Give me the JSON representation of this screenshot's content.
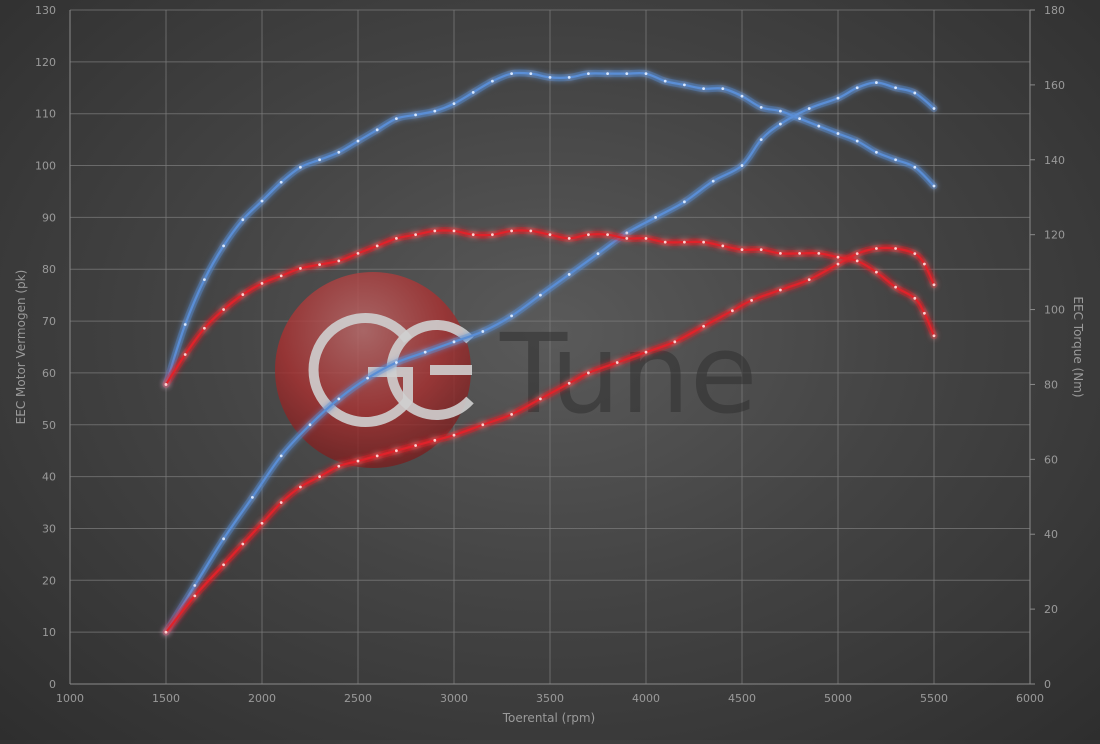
{
  "chart_data": {
    "type": "line",
    "xlabel": "Toerental (rpm)",
    "ylabel_left": "EEC Motor Vermogen (pk)",
    "ylabel_right": "EEC Torque (Nm)",
    "xlim": [
      1000,
      6000
    ],
    "ylim_left": [
      0,
      130
    ],
    "ylim_right": [
      0,
      180
    ],
    "x_ticks": [
      1000,
      1500,
      2000,
      2500,
      3000,
      3500,
      4000,
      4500,
      5000,
      5500,
      6000
    ],
    "y_ticks_left": [
      0,
      10,
      20,
      30,
      40,
      50,
      60,
      70,
      80,
      90,
      100,
      110,
      120,
      130
    ],
    "y_ticks_right": [
      0,
      20,
      40,
      60,
      80,
      100,
      120,
      140,
      160,
      180
    ],
    "grid": true,
    "legend": "none",
    "series": [
      {
        "axis": "left",
        "color": "#5a8ed6",
        "points": [
          [
            1500,
            10
          ],
          [
            1650,
            19
          ],
          [
            1800,
            28
          ],
          [
            1950,
            36
          ],
          [
            2100,
            44
          ],
          [
            2250,
            50
          ],
          [
            2400,
            55
          ],
          [
            2550,
            59
          ],
          [
            2700,
            62
          ],
          [
            2850,
            64
          ],
          [
            3000,
            66
          ],
          [
            3150,
            68
          ],
          [
            3300,
            71
          ],
          [
            3450,
            75
          ],
          [
            3600,
            79
          ],
          [
            3750,
            83
          ],
          [
            3900,
            87
          ],
          [
            4050,
            90
          ],
          [
            4200,
            93
          ],
          [
            4350,
            97
          ],
          [
            4500,
            100
          ],
          [
            4600,
            105
          ],
          [
            4700,
            108
          ],
          [
            4850,
            111
          ],
          [
            5000,
            113
          ],
          [
            5100,
            115
          ],
          [
            5200,
            116
          ],
          [
            5300,
            115
          ],
          [
            5400,
            114
          ],
          [
            5500,
            111
          ]
        ]
      },
      {
        "axis": "right",
        "color": "#5a8ed6",
        "points": [
          [
            1500,
            80
          ],
          [
            1600,
            96
          ],
          [
            1700,
            108
          ],
          [
            1800,
            117
          ],
          [
            1900,
            124
          ],
          [
            2000,
            129
          ],
          [
            2100,
            134
          ],
          [
            2200,
            138
          ],
          [
            2300,
            140
          ],
          [
            2400,
            142
          ],
          [
            2500,
            145
          ],
          [
            2600,
            148
          ],
          [
            2700,
            151
          ],
          [
            2800,
            152
          ],
          [
            2900,
            153
          ],
          [
            3000,
            155
          ],
          [
            3100,
            158
          ],
          [
            3200,
            161
          ],
          [
            3300,
            163
          ],
          [
            3400,
            163
          ],
          [
            3500,
            162
          ],
          [
            3600,
            162
          ],
          [
            3700,
            163
          ],
          [
            3800,
            163
          ],
          [
            3900,
            163
          ],
          [
            4000,
            163
          ],
          [
            4100,
            161
          ],
          [
            4200,
            160
          ],
          [
            4300,
            159
          ],
          [
            4400,
            159
          ],
          [
            4500,
            157
          ],
          [
            4600,
            154
          ],
          [
            4700,
            153
          ],
          [
            4800,
            151
          ],
          [
            4900,
            149
          ],
          [
            5000,
            147
          ],
          [
            5100,
            145
          ],
          [
            5200,
            142
          ],
          [
            5300,
            140
          ],
          [
            5400,
            138
          ],
          [
            5500,
            133
          ]
        ]
      },
      {
        "axis": "left",
        "color": "#e0232a",
        "points": [
          [
            1500,
            10
          ],
          [
            1650,
            17
          ],
          [
            1800,
            23
          ],
          [
            1900,
            27
          ],
          [
            2000,
            31
          ],
          [
            2100,
            35
          ],
          [
            2200,
            38
          ],
          [
            2300,
            40
          ],
          [
            2400,
            42
          ],
          [
            2500,
            43
          ],
          [
            2600,
            44
          ],
          [
            2700,
            45
          ],
          [
            2800,
            46
          ],
          [
            2900,
            47
          ],
          [
            3000,
            48
          ],
          [
            3150,
            50
          ],
          [
            3300,
            52
          ],
          [
            3450,
            55
          ],
          [
            3600,
            58
          ],
          [
            3700,
            60
          ],
          [
            3850,
            62
          ],
          [
            4000,
            64
          ],
          [
            4150,
            66
          ],
          [
            4300,
            69
          ],
          [
            4450,
            72
          ],
          [
            4550,
            74
          ],
          [
            4700,
            76
          ],
          [
            4850,
            78
          ],
          [
            5000,
            81
          ],
          [
            5100,
            83
          ],
          [
            5200,
            84
          ],
          [
            5300,
            84
          ],
          [
            5400,
            83
          ],
          [
            5450,
            81
          ],
          [
            5500,
            77
          ]
        ]
      },
      {
        "axis": "right",
        "color": "#e0232a",
        "points": [
          [
            1500,
            80
          ],
          [
            1600,
            88
          ],
          [
            1700,
            95
          ],
          [
            1800,
            100
          ],
          [
            1900,
            104
          ],
          [
            2000,
            107
          ],
          [
            2100,
            109
          ],
          [
            2200,
            111
          ],
          [
            2300,
            112
          ],
          [
            2400,
            113
          ],
          [
            2500,
            115
          ],
          [
            2600,
            117
          ],
          [
            2700,
            119
          ],
          [
            2800,
            120
          ],
          [
            2900,
            121
          ],
          [
            3000,
            121
          ],
          [
            3100,
            120
          ],
          [
            3200,
            120
          ],
          [
            3300,
            121
          ],
          [
            3400,
            121
          ],
          [
            3500,
            120
          ],
          [
            3600,
            119
          ],
          [
            3700,
            120
          ],
          [
            3800,
            120
          ],
          [
            3900,
            119
          ],
          [
            4000,
            119
          ],
          [
            4100,
            118
          ],
          [
            4200,
            118
          ],
          [
            4300,
            118
          ],
          [
            4400,
            117
          ],
          [
            4500,
            116
          ],
          [
            4600,
            116
          ],
          [
            4700,
            115
          ],
          [
            4800,
            115
          ],
          [
            4900,
            115
          ],
          [
            5000,
            114
          ],
          [
            5100,
            113
          ],
          [
            5200,
            110
          ],
          [
            5300,
            106
          ],
          [
            5400,
            103
          ],
          [
            5450,
            99
          ],
          [
            5500,
            93
          ]
        ]
      }
    ]
  }
}
